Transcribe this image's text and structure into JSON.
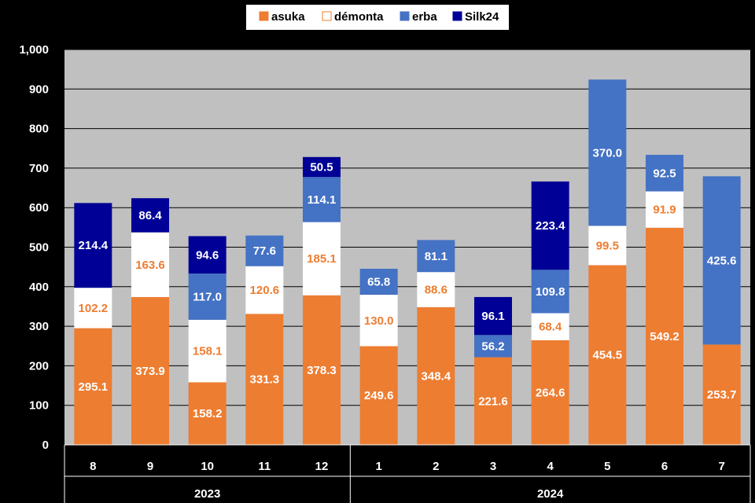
{
  "chart_data": {
    "type": "bar",
    "stacked": true,
    "categories": [
      "8",
      "9",
      "10",
      "11",
      "12",
      "1",
      "2",
      "3",
      "4",
      "5",
      "6",
      "7"
    ],
    "groups": [
      {
        "label": "2023",
        "categories": [
          "8",
          "9",
          "10",
          "11",
          "12"
        ]
      },
      {
        "label": "2024",
        "categories": [
          "1",
          "2",
          "3",
          "4",
          "5",
          "6",
          "7"
        ]
      }
    ],
    "series": [
      {
        "name": "asuka",
        "color": "#ED7D31",
        "label_color": "#FFFFFF",
        "values": [
          295.1,
          373.9,
          158.2,
          331.3,
          378.3,
          249.6,
          348.4,
          221.6,
          264.6,
          454.5,
          549.2,
          253.7
        ]
      },
      {
        "name": "démonta",
        "color": "#FFFFFF",
        "label_color": "#ED7D31",
        "values": [
          102.2,
          163.6,
          158.1,
          120.6,
          185.1,
          130.0,
          88.6,
          null,
          68.4,
          99.5,
          91.9,
          null
        ]
      },
      {
        "name": "erba",
        "color": "#4472C4",
        "label_color": "#FFFFFF",
        "values": [
          null,
          null,
          117.0,
          77.6,
          114.1,
          65.8,
          81.1,
          56.2,
          109.8,
          370.0,
          92.5,
          425.6
        ]
      },
      {
        "name": "Silk24",
        "color": "#000096",
        "label_color": "#FFFFFF",
        "values": [
          214.4,
          86.4,
          94.6,
          null,
          50.5,
          null,
          null,
          96.1,
          223.4,
          null,
          null,
          null
        ]
      }
    ],
    "y_ticks": [
      "0",
      "100",
      "200",
      "300",
      "400",
      "500",
      "600",
      "700",
      "800",
      "900",
      "1,000"
    ],
    "ylim": [
      0,
      1000
    ],
    "grid": true,
    "legend": "top-center",
    "plot_background": "#C0C0C0",
    "page_background": "#000000"
  }
}
